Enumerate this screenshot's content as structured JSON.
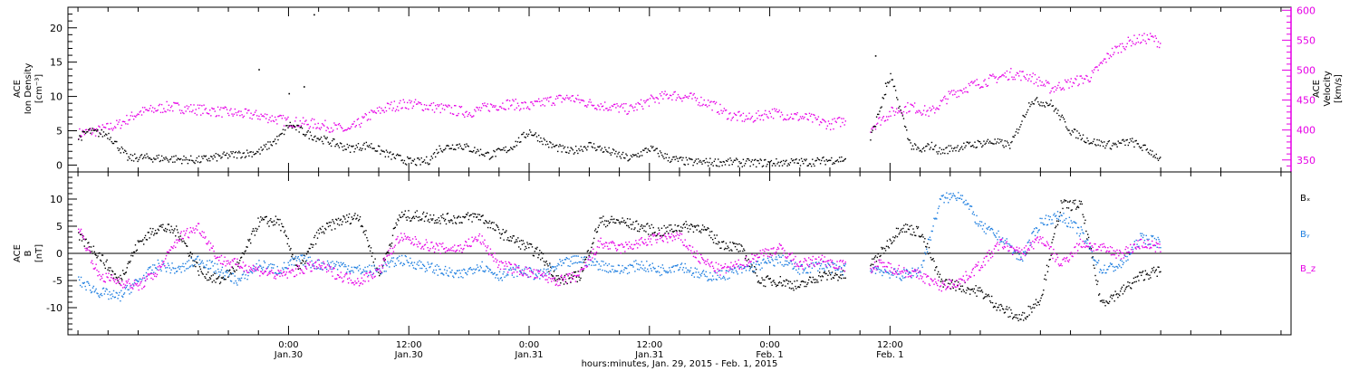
{
  "chart_data": [
    {
      "type": "scatter",
      "panel": "top",
      "title": "",
      "ylabel_left": [
        "ACE",
        "Ion Density",
        "[cm⁻³]"
      ],
      "ylabel_right": [
        "ACE",
        "Velocity",
        "[km/s]"
      ],
      "ylim_left": [
        -1,
        23
      ],
      "ylim_right": [
        330,
        605
      ],
      "yticks_left": [
        "0",
        "5",
        "10",
        "15",
        "20"
      ],
      "yticks_right": [
        "350",
        "400",
        "450",
        "500",
        "550",
        "600"
      ],
      "colors": {
        "density": "#000000",
        "velocity": "#e600e6"
      },
      "series": [
        {
          "axis": "left",
          "color": "#000000",
          "x": [
            -21,
            -20,
            -18,
            -16,
            -15,
            -12,
            -9,
            -6,
            -3,
            -1,
            0,
            2,
            4,
            6,
            8,
            10,
            12,
            13,
            14,
            15,
            17,
            19,
            20,
            22,
            24,
            26,
            28,
            30,
            32,
            34,
            36,
            38,
            40,
            42,
            44,
            46,
            48,
            50,
            52,
            54,
            56,
            58,
            60,
            62,
            63,
            64,
            65,
            66,
            68,
            70,
            72,
            74,
            76,
            78,
            80,
            82,
            84,
            86,
            87
          ],
          "y": [
            4,
            5,
            4.5,
            1,
            1.2,
            1,
            0.8,
            1.5,
            2,
            4,
            6,
            4.5,
            3.5,
            2.5,
            3,
            1.5,
            0.6,
            0.5,
            0.8,
            2.5,
            3,
            2,
            1.5,
            2.5,
            5,
            3,
            2,
            3,
            2,
            1,
            2.5,
            1,
            0.5,
            0.5,
            0.5,
            0.4,
            0.4,
            0.5,
            0.5,
            0.8,
            1,
            4,
            13,
            3,
            2,
            3,
            2,
            2.5,
            3,
            3.5,
            3,
            9.5,
            9,
            5,
            3.5,
            3,
            3.5,
            2,
            0.8
          ]
        },
        {
          "axis": "right",
          "color": "#e600e6",
          "x": [
            -21,
            -19,
            -17,
            -15,
            -12,
            -9,
            -6,
            -3,
            0,
            3,
            6,
            8,
            10,
            12,
            14,
            16,
            18,
            20,
            22,
            24,
            26,
            28,
            30,
            32,
            34,
            36,
            38,
            40,
            42,
            44,
            46,
            48,
            50,
            52,
            54,
            56,
            58,
            60,
            62,
            64,
            66,
            68,
            70,
            72,
            74,
            76,
            78,
            80,
            82,
            84,
            86,
            87
          ],
          "y": [
            395,
            400,
            410,
            430,
            440,
            435,
            430,
            425,
            415,
            410,
            400,
            425,
            440,
            445,
            440,
            435,
            430,
            440,
            445,
            440,
            450,
            455,
            445,
            440,
            435,
            450,
            460,
            455,
            445,
            425,
            420,
            430,
            425,
            420,
            410,
            420,
            405,
            430,
            440,
            430,
            460,
            475,
            485,
            495,
            490,
            470,
            480,
            490,
            530,
            550,
            555,
            545
          ]
        }
      ],
      "sparse_points": [
        {
          "x": 2.5,
          "y": 22
        },
        {
          "x": -3,
          "y": 14
        },
        {
          "x": 0,
          "y": 10.5
        },
        {
          "x": 1.5,
          "y": 11.5
        },
        {
          "x": 58.5,
          "y": 16
        },
        {
          "x": 59.5,
          "y": 12
        }
      ]
    },
    {
      "type": "scatter",
      "panel": "bottom",
      "title": "",
      "ylabel_left": [
        "ACE",
        "B",
        "[nT]"
      ],
      "ylim": [
        -15,
        15
      ],
      "yticks": [
        "-10",
        "-5",
        "0",
        "5",
        "10"
      ],
      "zero_line": true,
      "legend": [
        {
          "label": "Bₓ",
          "color": "#000000"
        },
        {
          "label": "Bᵧ",
          "color": "#1f7fe0"
        },
        {
          "label": "B_z",
          "color": "#e600e6"
        }
      ],
      "series": [
        {
          "name": "Bx",
          "color": "#000000",
          "x": [
            -21,
            -19,
            -17,
            -15,
            -13,
            -11,
            -9,
            -7,
            -5,
            -3,
            -1,
            1,
            3,
            5,
            7,
            9,
            11,
            13,
            15,
            17,
            19,
            21,
            23,
            25,
            27,
            29,
            31,
            33,
            35,
            37,
            39,
            41,
            43,
            45,
            47,
            49,
            51,
            53,
            55,
            57,
            59,
            61,
            63,
            65,
            67,
            69,
            71,
            73,
            75,
            77,
            79,
            81,
            83,
            85,
            87
          ],
          "y": [
            3,
            0,
            -5,
            2,
            5,
            4,
            -3,
            -5,
            -2,
            6,
            6,
            -3,
            4,
            6,
            7,
            -4,
            7,
            7,
            6.5,
            6.5,
            7,
            4,
            2,
            0,
            -5,
            -4,
            6,
            6,
            5,
            4,
            5,
            5,
            2,
            1,
            -5,
            -5,
            -6,
            -4,
            -4,
            -4,
            0,
            5,
            4,
            -5,
            -6,
            -7,
            -10,
            -12,
            -8,
            9,
            9,
            -9,
            -7,
            -4,
            -3
          ]
        },
        {
          "name": "By",
          "color": "#1f7fe0",
          "x": [
            -21,
            -19,
            -17,
            -15,
            -13,
            -11,
            -9,
            -7,
            -5,
            -3,
            -1,
            1,
            3,
            5,
            7,
            9,
            11,
            13,
            15,
            17,
            19,
            21,
            23,
            25,
            27,
            29,
            31,
            33,
            35,
            37,
            39,
            41,
            43,
            45,
            47,
            49,
            51,
            53,
            55,
            57,
            59,
            61,
            63,
            65,
            67,
            69,
            71,
            73,
            75,
            77,
            79,
            81,
            83,
            85,
            87
          ],
          "y": [
            -5,
            -7,
            -8,
            -5,
            -2,
            -3,
            -1,
            -3,
            -5,
            -2,
            -3,
            -1,
            -2,
            -2,
            -3,
            -3,
            -1,
            -2,
            -3,
            -4,
            -2,
            -4,
            -3,
            -4,
            -2,
            -1,
            -2,
            -3,
            -2,
            -3,
            -2,
            -4,
            -4,
            -3,
            -2,
            -1,
            -3,
            -2,
            -3,
            -2,
            -3,
            -4,
            -3,
            10,
            11,
            5,
            3,
            -1,
            6,
            7,
            4,
            -3,
            -2,
            3,
            2
          ]
        },
        {
          "name": "Bz",
          "color": "#e600e6",
          "x": [
            -21,
            -19,
            -17,
            -15,
            -13,
            -11,
            -9,
            -7,
            -5,
            -3,
            -1,
            1,
            3,
            5,
            7,
            9,
            11,
            13,
            15,
            17,
            19,
            21,
            23,
            25,
            27,
            29,
            31,
            33,
            35,
            37,
            39,
            41,
            43,
            45,
            47,
            49,
            51,
            53,
            55,
            57,
            59,
            61,
            63,
            65,
            67,
            69,
            71,
            73,
            75,
            77,
            79,
            81,
            83,
            85,
            87
          ],
          "y": [
            5,
            -4,
            -5,
            -6,
            -3,
            3,
            5,
            -1,
            -2,
            -3,
            -4,
            -3,
            -2,
            -4,
            -5,
            -3,
            3,
            2,
            1,
            1,
            3,
            -2,
            -3,
            -4,
            -5,
            -4,
            2,
            1,
            2,
            3,
            3,
            -1,
            -3,
            -2,
            0,
            1,
            -2,
            -1,
            -2,
            -3,
            -2,
            -3,
            -4,
            -6,
            -5,
            -2,
            2,
            0,
            3,
            -2,
            2,
            1,
            0,
            2,
            1
          ]
        }
      ]
    }
  ],
  "x_axis": {
    "range_hours": [
      -22,
      100
    ],
    "ticks": [
      {
        "h": 0,
        "time": "0:00",
        "date": "Jan.30"
      },
      {
        "h": 12,
        "time": "12:00",
        "date": "Jan.30"
      },
      {
        "h": 24,
        "time": "0:00",
        "date": "Jan.31"
      },
      {
        "h": 36,
        "time": "12:00",
        "date": "Jan.31"
      },
      {
        "h": 48,
        "time": "0:00",
        "date": "Feb. 1"
      },
      {
        "h": 60,
        "time": "12:00",
        "date": "Feb. 1"
      }
    ],
    "xlabel": "hours:minutes, Jan. 29, 2015 - Feb.  1, 2015"
  }
}
